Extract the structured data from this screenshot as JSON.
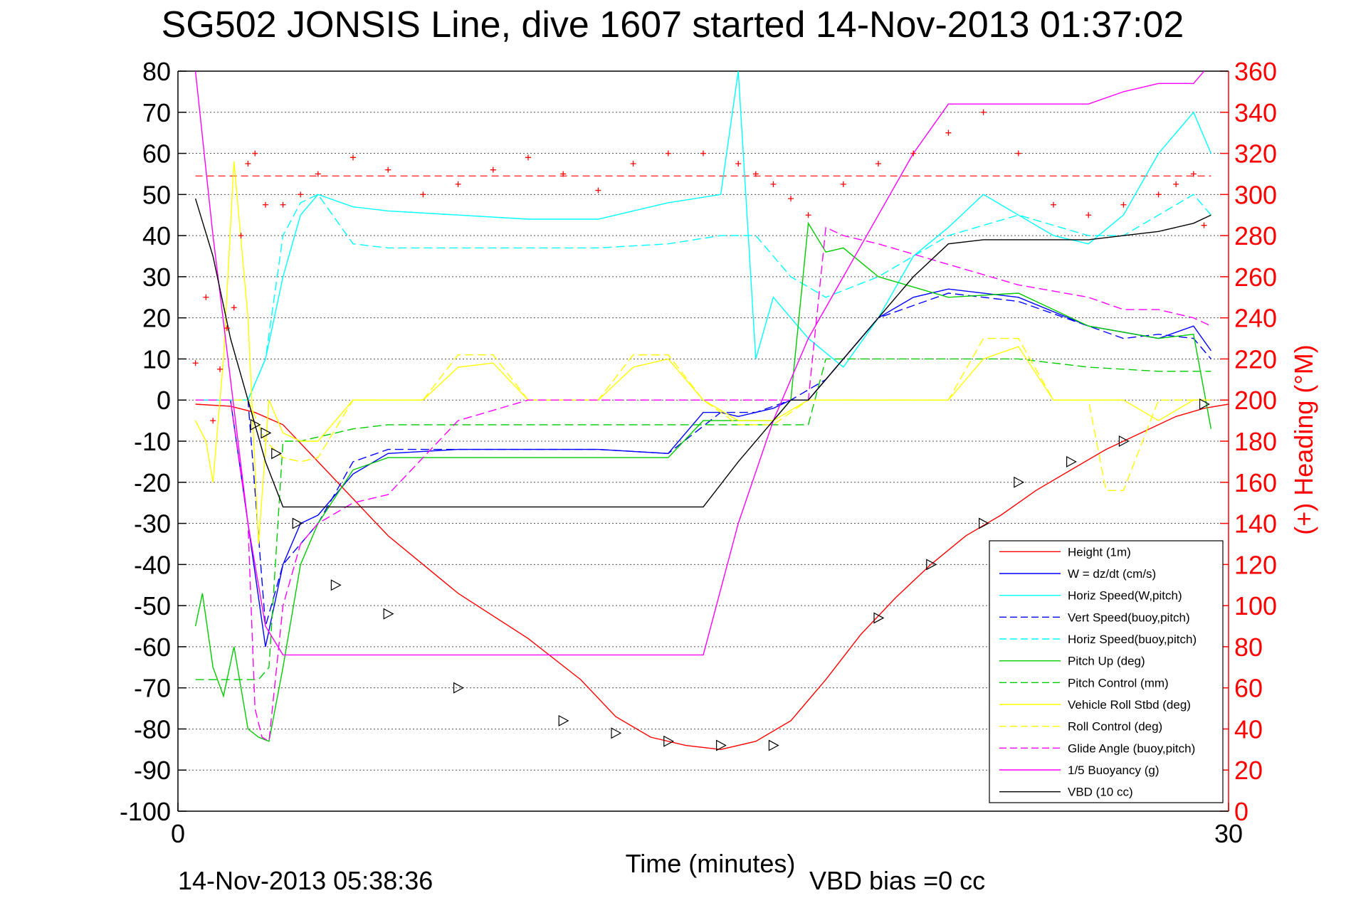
{
  "chart_data": {
    "type": "line",
    "title": "SG502 JONSIS Line, dive 1607 started 14-Nov-2013 01:37:02",
    "xlabel": "Time (minutes)",
    "ylabel_right": "(+) Heading (°M)",
    "xlim": [
      0,
      30
    ],
    "ylim": [
      -100,
      80
    ],
    "ylim_right": [
      0,
      360
    ],
    "x_ticks": [
      "0",
      "30"
    ],
    "y_ticks": [
      "80",
      "70",
      "60",
      "50",
      "40",
      "30",
      "20",
      "10",
      "0",
      "-10",
      "-20",
      "-30",
      "-40",
      "-50",
      "-60",
      "-70",
      "-80",
      "-90",
      "-100"
    ],
    "y_ticks_right": [
      "360",
      "340",
      "320",
      "300",
      "280",
      "260",
      "240",
      "220",
      "200",
      "180",
      "160",
      "140",
      "120",
      "100",
      "80",
      "60",
      "40",
      "20",
      "0"
    ],
    "grid": true,
    "legend_position": "bottom-right",
    "footer_left": "14-Nov-2013 05:38:36",
    "footer_right": "VBD bias =0 cc",
    "heading_target": 309,
    "series": [
      {
        "name": "Height (1m)",
        "color": "#ff0000",
        "style": "solid",
        "x": [
          0.5,
          1.5,
          2.2,
          3,
          4,
          6,
          8,
          10,
          11.5,
          12.5,
          13.5,
          14.5,
          15.5,
          16.5,
          17.5,
          18.5,
          19.5,
          20.5,
          21.5,
          22.5,
          23.5,
          24.5,
          25.5,
          26.5,
          27.5,
          28.5,
          29.3,
          30
        ],
        "y": [
          -1,
          -1.5,
          -3,
          -6,
          -15,
          -33,
          -47,
          -58,
          -68,
          -77,
          -82,
          -84,
          -85,
          -83,
          -78,
          -68,
          -57,
          -48,
          -40,
          -33,
          -28,
          -22,
          -17,
          -12,
          -8,
          -4,
          -2,
          -1
        ]
      },
      {
        "name": "W = dz/dt (cm/s)",
        "color": "#0000ff",
        "style": "solid",
        "x": [
          0.5,
          1.5,
          2,
          2.5,
          3,
          3.5,
          4,
          5,
          6,
          8,
          10,
          12,
          14,
          15,
          15.5,
          16,
          16.5,
          17,
          17.5,
          18,
          18.5,
          19,
          20,
          21,
          22,
          24,
          26,
          28,
          29,
          29.5
        ],
        "y": [
          0,
          0,
          -30,
          -60,
          -40,
          -30,
          -28,
          -18,
          -13,
          -12,
          -12,
          -12,
          -13,
          -3,
          -3,
          -4,
          -3,
          -2,
          0,
          0,
          5,
          10,
          20,
          25,
          27,
          25,
          18,
          15,
          18,
          12
        ]
      },
      {
        "name": "Horiz Speed(W,pitch)",
        "color": "#00ffff",
        "style": "solid",
        "x": [
          0.5,
          2,
          2.5,
          3,
          3.5,
          4,
          5,
          6,
          8,
          10,
          12,
          14,
          15.5,
          16,
          16.5,
          17,
          18,
          19,
          20,
          21,
          22,
          23,
          24,
          25,
          26,
          27,
          28,
          29,
          29.5
        ],
        "y": [
          0,
          0,
          10,
          30,
          45,
          50,
          47,
          46,
          45,
          44,
          44,
          48,
          50,
          80,
          10,
          25,
          15,
          8,
          20,
          35,
          42,
          50,
          45,
          40,
          38,
          45,
          60,
          70,
          60
        ]
      },
      {
        "name": "Vert Speed(buoy,pitch)",
        "color": "#0000ff",
        "style": "dashed",
        "x": [
          0.5,
          2,
          2.5,
          3,
          4,
          5,
          6,
          8,
          10,
          12,
          14,
          15.5,
          16.5,
          17.5,
          18.5,
          20,
          22,
          24,
          26,
          27,
          28,
          29,
          29.5
        ],
        "y": [
          0,
          0,
          -55,
          -40,
          -30,
          -15,
          -12,
          -12,
          -12,
          -12,
          -13,
          -3,
          -3,
          0,
          5,
          20,
          26,
          24,
          18,
          15,
          16,
          15,
          10
        ]
      },
      {
        "name": "Horiz Speed(buoy,pitch)",
        "color": "#00ffff",
        "style": "dashed",
        "x": [
          0.5,
          2,
          2.5,
          3,
          3.5,
          4,
          5,
          6,
          8,
          10,
          12,
          14,
          15.5,
          16.5,
          17.5,
          18.5,
          20,
          22,
          24,
          26,
          27,
          28,
          29,
          29.5
        ],
        "y": [
          0,
          0,
          10,
          40,
          48,
          50,
          38,
          37,
          37,
          37,
          37,
          38,
          40,
          40,
          30,
          25,
          30,
          40,
          45,
          40,
          40,
          45,
          50,
          45
        ]
      },
      {
        "name": "Pitch Up (deg)",
        "color": "#00cc00",
        "style": "solid",
        "x": [
          0.5,
          0.7,
          1,
          1.3,
          1.6,
          2,
          2.3,
          2.6,
          3,
          3.5,
          4,
          5,
          6,
          8,
          10,
          12,
          14,
          15,
          16,
          17,
          17.5,
          18,
          18.5,
          19,
          20,
          22,
          24,
          26,
          28,
          29,
          29.5
        ],
        "y": [
          -55,
          -47,
          -65,
          -72,
          -60,
          -80,
          -82,
          -83,
          -65,
          -40,
          -30,
          -17,
          -14,
          -14,
          -14,
          -14,
          -14,
          -5,
          -5,
          -5,
          0,
          43,
          36,
          37,
          30,
          25,
          26,
          18,
          15,
          16,
          -7
        ]
      },
      {
        "name": "Pitch Control (mm)",
        "color": "#00cc00",
        "style": "dashed",
        "x": [
          0.5,
          2.3,
          2.6,
          3,
          3.5,
          4,
          5,
          6,
          8,
          10,
          12,
          14,
          15,
          16,
          17,
          18,
          18.5,
          20,
          22,
          24,
          26,
          28,
          29.5
        ],
        "y": [
          -68,
          -68,
          -65,
          -10,
          -10,
          -9,
          -7,
          -6,
          -6,
          -6,
          -6,
          -6,
          -6,
          -6,
          -6,
          -6,
          10,
          10,
          10,
          10,
          8,
          7,
          7
        ]
      },
      {
        "name": "Vehicle Roll Stbd (deg)",
        "color": "#ffff00",
        "style": "solid",
        "x": [
          0.5,
          0.8,
          1,
          1.3,
          1.6,
          2,
          2.3,
          2.6,
          3,
          3.5,
          4,
          5,
          6,
          7,
          8,
          9,
          10,
          11,
          12,
          13,
          14,
          15,
          16,
          17,
          18,
          19,
          20,
          21,
          22,
          23,
          24,
          25,
          26,
          27,
          28,
          29,
          29.5
        ],
        "y": [
          -5,
          -10,
          -20,
          10,
          58,
          20,
          -35,
          0,
          -8,
          -10,
          -10,
          0,
          0,
          0,
          8,
          9,
          0,
          0,
          0,
          8,
          10,
          0,
          -5,
          -5,
          0,
          0,
          0,
          0,
          0,
          10,
          13,
          0,
          0,
          0,
          -5,
          0,
          0
        ]
      },
      {
        "name": "Roll Control (deg)",
        "color": "#ffff00",
        "style": "dashed",
        "x": [
          0.5,
          2,
          2.5,
          3,
          3.5,
          4,
          5,
          6,
          7,
          8,
          9,
          10,
          11,
          12,
          13,
          14,
          15,
          16,
          17,
          18,
          19,
          20,
          21,
          22,
          23,
          24,
          25,
          26,
          26.5,
          27,
          28,
          29,
          29.5
        ],
        "y": [
          0,
          0,
          -10,
          -14,
          -15,
          -14,
          0,
          0,
          0,
          11,
          11,
          0,
          0,
          0,
          11,
          11,
          0,
          -6,
          -6,
          0,
          0,
          0,
          0,
          0,
          15,
          15,
          0,
          0,
          -22,
          -22,
          0,
          0,
          0
        ]
      },
      {
        "name": "Glide Angle (buoy,pitch)",
        "color": "#ff00ff",
        "style": "dashed",
        "x": [
          0.5,
          1.5,
          2,
          2.2,
          2.4,
          2.6,
          3,
          3.5,
          4,
          5,
          6,
          8,
          10,
          12,
          14,
          16,
          17,
          18,
          18.5,
          19,
          20,
          22,
          24,
          26,
          27,
          28,
          29,
          29.5
        ],
        "y": [
          0,
          0,
          -30,
          -75,
          -82,
          -83,
          -50,
          -35,
          -30,
          -25,
          -23,
          -5,
          0,
          0,
          0,
          0,
          0,
          0,
          42,
          40,
          38,
          33,
          28,
          25,
          22,
          22,
          20,
          18
        ]
      },
      {
        "name": "1/5 Buoyancy (g)",
        "color": "#ff00ff",
        "style": "solid",
        "x": [
          0.5,
          1,
          1.5,
          2,
          2.5,
          3,
          4,
          5,
          6,
          8,
          10,
          12,
          14,
          15,
          16,
          17,
          18,
          19,
          20,
          21,
          22,
          23,
          24,
          25,
          26,
          27,
          28,
          29,
          29.3
        ],
        "y": [
          80,
          40,
          5,
          -30,
          -55,
          -62,
          -62,
          -62,
          -62,
          -62,
          -62,
          -62,
          -62,
          -62,
          -30,
          -5,
          15,
          30,
          45,
          60,
          72,
          72,
          72,
          72,
          72,
          75,
          77,
          77,
          80
        ]
      },
      {
        "name": "VBD (10 cc)",
        "color": "#000000",
        "style": "solid",
        "x": [
          0.5,
          1,
          1.5,
          2,
          2.5,
          3,
          4,
          6,
          8,
          10,
          12,
          14,
          15,
          16,
          17,
          17.5,
          18,
          19,
          20,
          21,
          22,
          23,
          24,
          25,
          26,
          27,
          28,
          29,
          29.5
        ],
        "y": [
          49,
          35,
          15,
          0,
          -15,
          -26,
          -26,
          -26,
          -26,
          -26,
          -26,
          -26,
          -26,
          -15,
          -5,
          0,
          0,
          10,
          20,
          30,
          38,
          39,
          39,
          39,
          39,
          40,
          41,
          43,
          45
        ]
      }
    ],
    "heading_points": {
      "name": "(+) Heading",
      "color": "#ff0000",
      "x": [
        0.5,
        0.8,
        1,
        1.2,
        1.4,
        1.6,
        1.8,
        2,
        2.2,
        2.5,
        3,
        3.5,
        4,
        5,
        6,
        7,
        8,
        9,
        10,
        11,
        12,
        13,
        14,
        15,
        16,
        16.5,
        17,
        17.5,
        18,
        19,
        20,
        21,
        22,
        23,
        24,
        25,
        26,
        27,
        28,
        28.5,
        29,
        29.3
      ],
      "y": [
        218,
        250,
        190,
        215,
        235,
        245,
        280,
        315,
        320,
        295,
        295,
        300,
        310,
        318,
        312,
        300,
        305,
        312,
        318,
        310,
        302,
        315,
        320,
        320,
        315,
        310,
        305,
        298,
        290,
        305,
        315,
        320,
        330,
        340,
        320,
        295,
        290,
        295,
        300,
        305,
        310,
        285
      ]
    },
    "depth_markers": {
      "color": "#000000",
      "x": [
        2.2,
        2.5,
        2.8,
        3.4,
        4.5,
        6,
        8,
        11,
        12.5,
        14,
        15.5,
        17,
        20,
        21.5,
        23,
        24,
        25.5,
        27,
        29.3
      ],
      "y": [
        -6,
        -8,
        -13,
        -30,
        -45,
        -52,
        -70,
        -78,
        -81,
        -83,
        -84,
        -84,
        -53,
        -40,
        -30,
        -20,
        -15,
        -10,
        -1
      ]
    }
  }
}
